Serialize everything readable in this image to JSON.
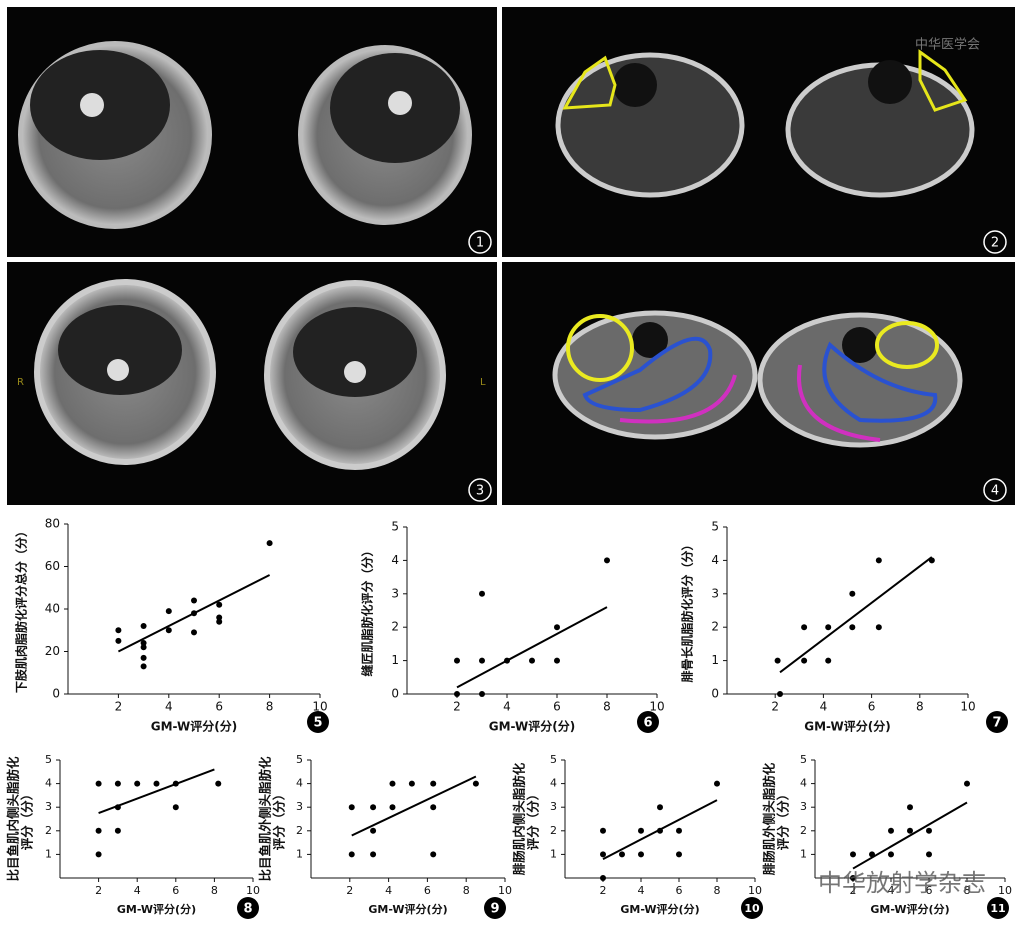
{
  "figure": {
    "panels": [
      {
        "label": "1"
      },
      {
        "label": "2"
      },
      {
        "label": "3"
      },
      {
        "label": "4"
      }
    ],
    "side_left": "R",
    "side_right": "L",
    "logo_text": "中华医学会",
    "watermark": "中华放射学杂志"
  },
  "chart_data": [
    {
      "type": "scatter",
      "panel": "5",
      "ylabel": [
        "下肢肌肉脂肪化评分总分（分）"
      ],
      "xlabel": "GM-W评分(分)",
      "xlim": [
        0,
        10
      ],
      "ylim": [
        0,
        80
      ],
      "xticks": [
        2,
        4,
        6,
        8,
        10
      ],
      "yticks": [
        0,
        20,
        40,
        60,
        80
      ],
      "x": [
        2,
        2,
        3,
        3,
        3,
        3,
        3,
        4,
        4,
        5,
        5,
        5,
        6,
        6,
        6,
        8
      ],
      "values": [
        30,
        25,
        32,
        24,
        22,
        17,
        13,
        39,
        30,
        44,
        38,
        29,
        42,
        36,
        34,
        71
      ],
      "fit": {
        "x": [
          2,
          8
        ],
        "y": [
          20,
          56
        ]
      }
    },
    {
      "type": "scatter",
      "panel": "6",
      "ylabel": [
        "缝匠肌脂肪化评分（分）"
      ],
      "xlabel": "GM-W评分(分)",
      "xlim": [
        0,
        10
      ],
      "ylim": [
        0,
        5
      ],
      "xticks": [
        2,
        4,
        6,
        8,
        10
      ],
      "yticks": [
        0,
        1,
        2,
        3,
        4,
        5
      ],
      "x": [
        2,
        2,
        3,
        3,
        3,
        4,
        5,
        6,
        6,
        8
      ],
      "values": [
        1,
        0,
        3,
        1,
        0,
        1,
        1,
        2,
        1,
        4
      ],
      "fit": {
        "x": [
          2,
          8
        ],
        "y": [
          0.2,
          2.6
        ]
      }
    },
    {
      "type": "scatter",
      "panel": "7",
      "ylabel": [
        "腓骨长肌脂肪化评分（分）"
      ],
      "xlabel": "GM-W评分(分)",
      "xlim": [
        0,
        10
      ],
      "ylim": [
        0,
        5
      ],
      "xticks": [
        2,
        4,
        6,
        8,
        10
      ],
      "yticks": [
        0,
        1,
        2,
        3,
        4,
        5
      ],
      "x": [
        2.1,
        2.2,
        3.2,
        3.2,
        4.2,
        4.2,
        5.2,
        5.2,
        6.3,
        6.3,
        8.5
      ],
      "values": [
        1,
        0,
        2,
        1,
        2,
        1,
        3,
        2,
        4,
        2,
        4
      ],
      "fit": {
        "x": [
          2.2,
          8.5
        ],
        "y": [
          0.65,
          4.1
        ]
      }
    },
    {
      "type": "scatter",
      "panel": "8",
      "ylabel": [
        "比目鱼肌内侧头脂肪化",
        "评分（分）"
      ],
      "xlabel": "GM-W评分(分)",
      "xlim": [
        0,
        10
      ],
      "ylim": [
        0,
        5
      ],
      "xticks": [
        2,
        4,
        6,
        8,
        10
      ],
      "yticks": [
        1,
        2,
        3,
        4,
        5
      ],
      "x": [
        2,
        2,
        2,
        3,
        3,
        3,
        4,
        5,
        6,
        6,
        8.2
      ],
      "values": [
        4,
        2,
        1,
        4,
        3,
        2,
        4,
        4,
        4,
        3,
        4
      ],
      "fit": {
        "x": [
          2,
          8
        ],
        "y": [
          2.75,
          4.6
        ]
      }
    },
    {
      "type": "scatter",
      "panel": "9",
      "ylabel": [
        "比目鱼肌外侧头脂肪化",
        "评分（分）"
      ],
      "xlabel": "GM-W评分(分)",
      "xlim": [
        0,
        10
      ],
      "ylim": [
        0,
        5
      ],
      "xticks": [
        2,
        4,
        6,
        8,
        10
      ],
      "yticks": [
        1,
        2,
        3,
        4,
        5
      ],
      "x": [
        2.1,
        2.1,
        3.2,
        3.2,
        3.2,
        4.2,
        4.2,
        5.2,
        6.3,
        6.3,
        6.3,
        8.5
      ],
      "values": [
        3,
        1,
        3,
        2,
        1,
        4,
        3,
        4,
        4,
        3,
        1,
        4
      ],
      "fit": {
        "x": [
          2.1,
          8.5
        ],
        "y": [
          1.8,
          4.3
        ]
      }
    },
    {
      "type": "scatter",
      "panel": "10",
      "ylabel": [
        "腓肠肌内侧头脂肪化",
        "评分（分）"
      ],
      "xlabel": "GM-W评分(分)",
      "xlim": [
        0,
        10
      ],
      "ylim": [
        0,
        5
      ],
      "xticks": [
        2,
        4,
        6,
        8,
        10
      ],
      "yticks": [
        1,
        2,
        3,
        4,
        5
      ],
      "x": [
        2,
        2,
        2,
        3,
        4,
        4,
        5,
        5,
        6,
        6,
        8
      ],
      "values": [
        2,
        1,
        0,
        1,
        2,
        1,
        3,
        2,
        2,
        1,
        4
      ],
      "fit": {
        "x": [
          2,
          8
        ],
        "y": [
          0.8,
          3.3
        ]
      }
    },
    {
      "type": "scatter",
      "panel": "11",
      "ylabel": [
        "腓肠肌外侧头脂肪化",
        "评分（分）"
      ],
      "xlabel": "GM-W评分(分)",
      "xlim": [
        0,
        10
      ],
      "ylim": [
        0,
        5
      ],
      "xticks": [
        2,
        4,
        6,
        8,
        10
      ],
      "yticks": [
        1,
        2,
        3,
        4,
        5
      ],
      "x": [
        2,
        2,
        3,
        4,
        4,
        5,
        5,
        6,
        6,
        8
      ],
      "values": [
        1,
        0,
        1,
        2,
        1,
        3,
        2,
        2,
        1,
        4
      ],
      "fit": {
        "x": [
          2,
          8
        ],
        "y": [
          0.4,
          3.2
        ]
      }
    }
  ]
}
